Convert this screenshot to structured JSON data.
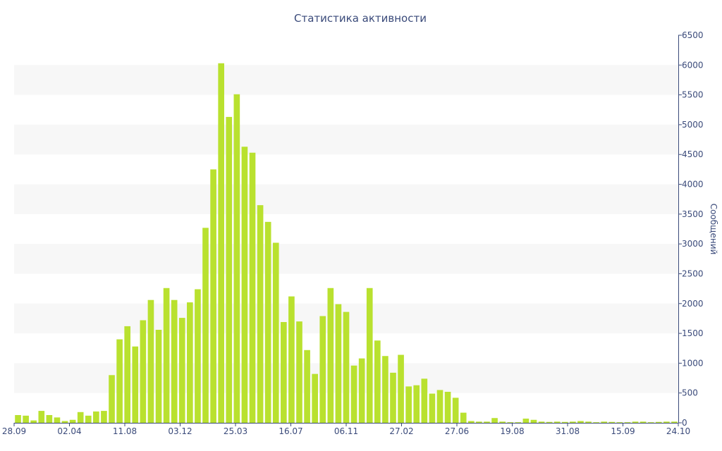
{
  "chart_data": {
    "type": "bar",
    "title": "Статистика активности",
    "xlabel": "",
    "ylabel": "Сообщений",
    "ylim": [
      0,
      6500
    ],
    "y_ticks": [
      0,
      500,
      1000,
      1500,
      2000,
      2500,
      3000,
      3500,
      4000,
      4500,
      5000,
      5500,
      6000,
      6500
    ],
    "y_axis_side": "right",
    "x_tick_labels": [
      "28.09",
      "02.04",
      "11.08",
      "03.12",
      "25.03",
      "16.07",
      "06.11",
      "27.02",
      "27.06",
      "19.08",
      "31.08",
      "15.09",
      "24.10"
    ],
    "grid": "alternating horizontal bands",
    "colors": {
      "bar": "#b9e12f",
      "axis": "#3a4a7a",
      "band": "#f7f7f7"
    },
    "values": [
      130,
      120,
      40,
      200,
      130,
      90,
      30,
      50,
      180,
      120,
      190,
      200,
      800,
      1400,
      1620,
      1280,
      1720,
      2060,
      1560,
      2260,
      2060,
      1760,
      2020,
      2240,
      3270,
      4250,
      6030,
      5130,
      5510,
      4630,
      4530,
      3650,
      3370,
      3020,
      1690,
      2120,
      1700,
      1220,
      820,
      1790,
      2260,
      1990,
      1860,
      960,
      1080,
      2260,
      1380,
      1120,
      840,
      1140,
      610,
      630,
      740,
      490,
      550,
      520,
      420,
      170,
      30,
      20,
      20,
      80,
      20,
      10,
      10,
      70,
      50,
      20,
      15,
      20,
      15,
      20,
      30,
      20,
      10,
      20,
      15,
      10,
      10,
      20,
      20,
      10,
      15,
      20,
      20
    ]
  }
}
